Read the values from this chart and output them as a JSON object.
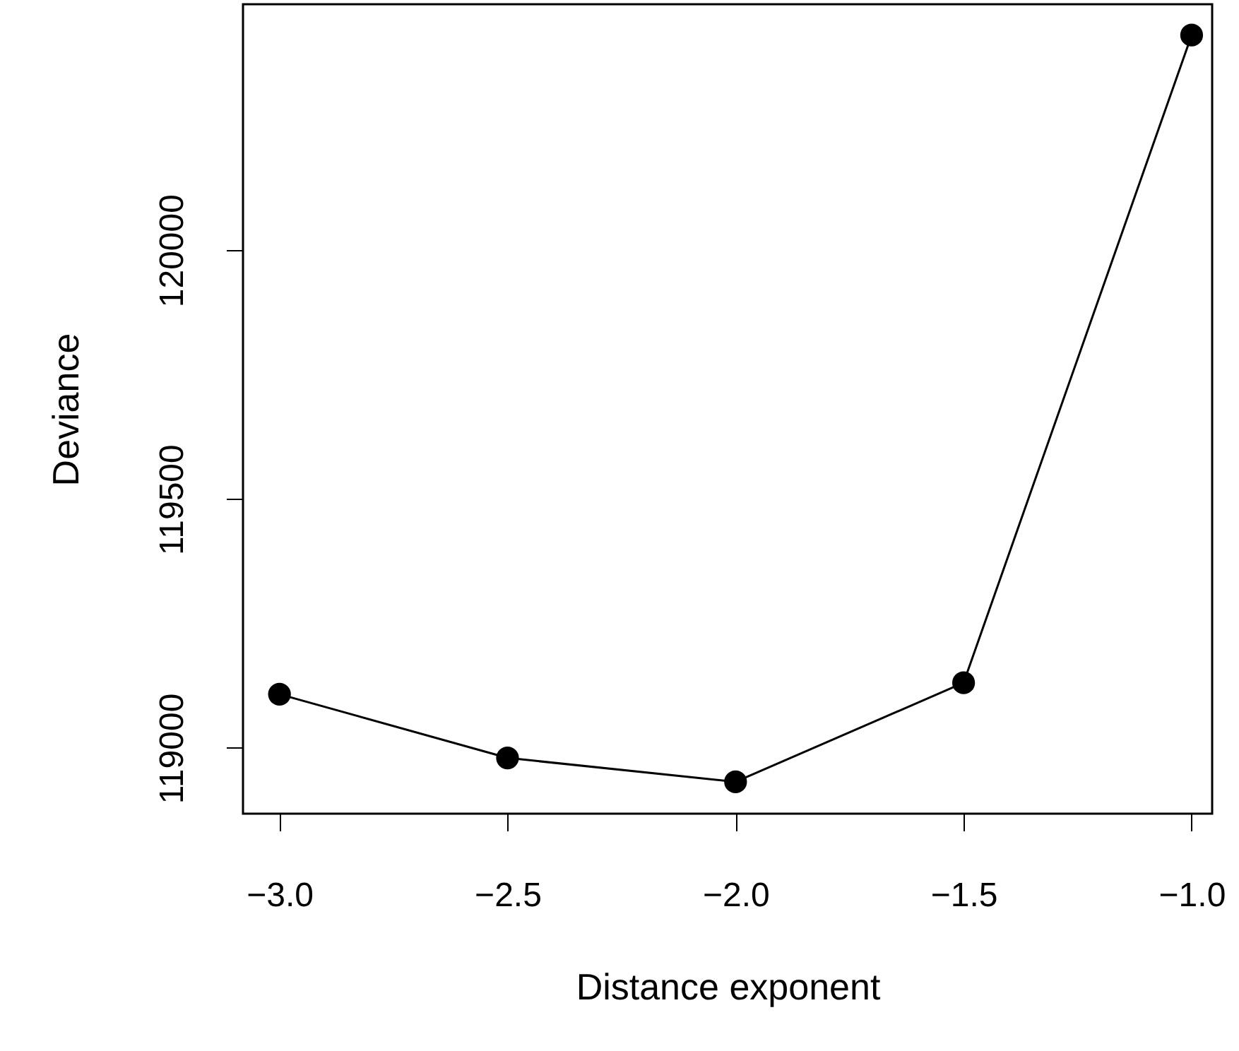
{
  "chart_data": {
    "type": "line",
    "xlabel": "Distance exponent",
    "ylabel": "Deviance",
    "x": [
      -3.0,
      -2.5,
      -2.0,
      -1.5,
      -1.0
    ],
    "series": [
      {
        "color": "#000000",
        "values": [
          119108,
          118980,
          118932,
          119131,
          120432
        ]
      }
    ],
    "xlim": [
      -3.08,
      -0.955
    ],
    "ylim": [
      118868,
      120494
    ],
    "xticks": [
      {
        "value": -3.0,
        "label": "−3.0"
      },
      {
        "value": -2.5,
        "label": "−2.5"
      },
      {
        "value": -2.0,
        "label": "−2.0"
      },
      {
        "value": -1.5,
        "label": "−1.5"
      },
      {
        "value": -1.0,
        "label": "−1.0"
      }
    ],
    "yticks": [
      119000,
      119500,
      120000
    ],
    "marker": "circle",
    "line_style": "solid"
  }
}
